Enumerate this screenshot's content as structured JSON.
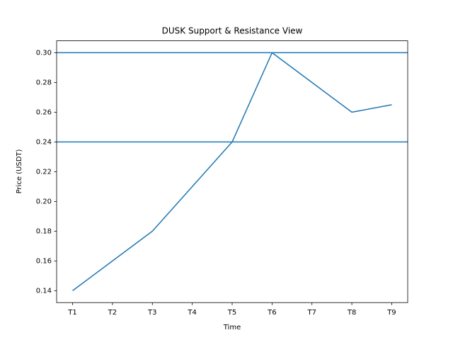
{
  "chart_data": {
    "type": "line",
    "title": "DUSK Support & Resistance View",
    "x_label": "Time",
    "y_label": "Price (USDT)",
    "categories": [
      "T1",
      "T2",
      "T3",
      "T4",
      "T5",
      "T6",
      "T7",
      "T8",
      "T9"
    ],
    "series": [
      {
        "name": "DUSK",
        "color": "#1f77b4",
        "values": [
          0.14,
          0.16,
          0.18,
          0.21,
          0.24,
          0.3,
          0.28,
          0.26,
          0.265
        ]
      }
    ],
    "hlines": [
      {
        "value": 0.3,
        "color": "#1f77b4"
      },
      {
        "value": 0.24,
        "color": "#1f77b4"
      }
    ],
    "xlim": [
      -0.4,
      8.4
    ],
    "ylim": [
      0.132,
      0.308
    ],
    "yticks": [
      0.14,
      0.16,
      0.18,
      {
        "value": 0.2,
        "label": "0.20"
      },
      0.22,
      0.24,
      0.26,
      0.28,
      {
        "value": 0.3,
        "label": "0.30"
      }
    ],
    "grid": false
  }
}
